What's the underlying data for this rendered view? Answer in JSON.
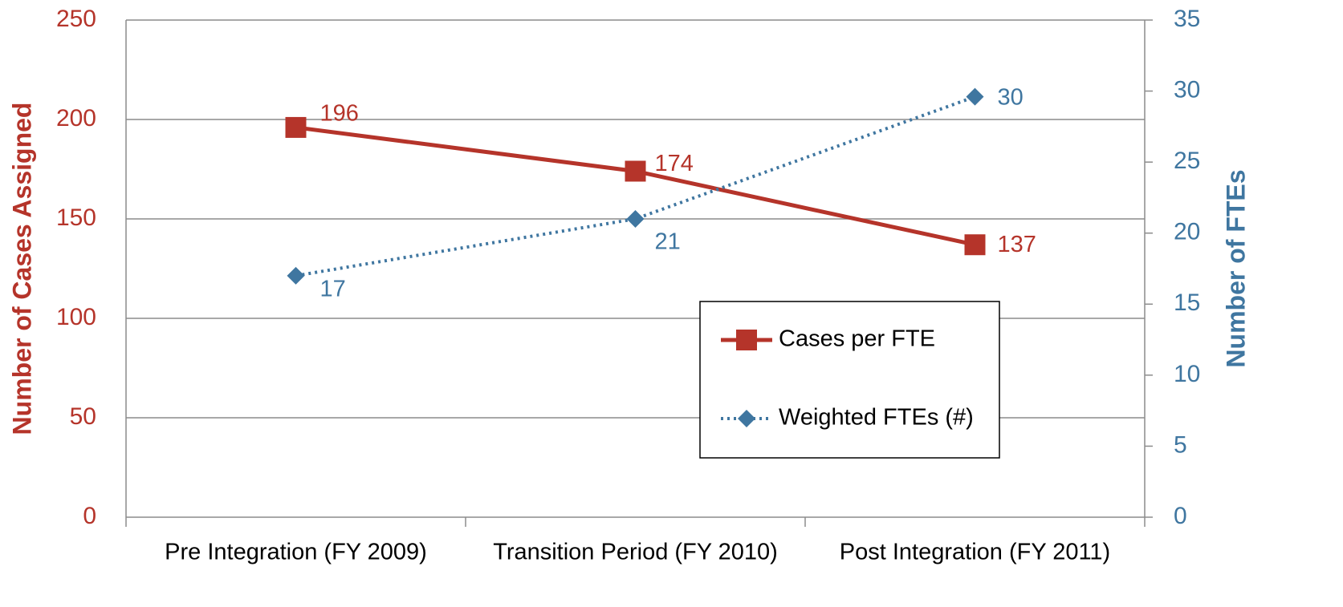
{
  "chart_data": {
    "type": "line",
    "categories": [
      "Pre Integration  (FY 2009)",
      "Transition Period (FY 2010)",
      "Post Integration (FY 2011)"
    ],
    "series": [
      {
        "name": "Cases per FTE",
        "color": "#b5342a",
        "values": [
          196,
          174,
          137
        ]
      },
      {
        "name": "Weighted FTEs (#)",
        "color": "#3f76a0",
        "axis": "y2",
        "values": [
          17,
          21,
          29.6
        ],
        "value_labels": [
          "17",
          "21",
          "30"
        ]
      }
    ],
    "ylabel": "Number of Cases Assigned",
    "y2label": "Number of FTEs",
    "ylim": [
      0,
      250
    ],
    "yticks": [
      0,
      50,
      100,
      150,
      200,
      250
    ],
    "y2lim": [
      0,
      35
    ],
    "y2ticks": [
      0,
      5,
      10,
      15,
      20,
      25,
      30,
      35
    ],
    "grid": true,
    "legend": "lower right"
  }
}
